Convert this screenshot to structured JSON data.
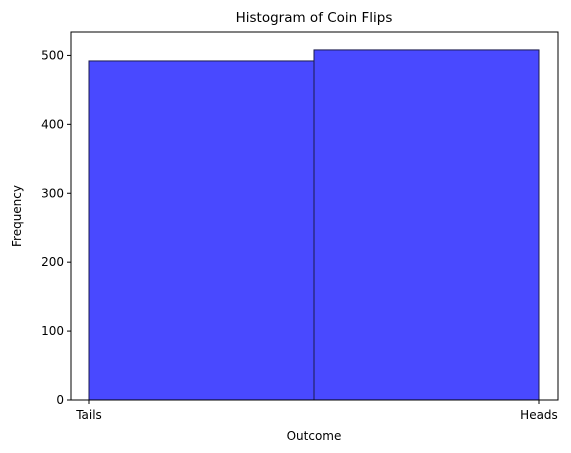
{
  "chart_data": {
    "type": "bar",
    "title": "Histogram of Coin Flips",
    "xlabel": "Outcome",
    "ylabel": "Frequency",
    "categories": [
      "Tails",
      "Heads"
    ],
    "values": [
      492,
      508
    ],
    "bar_color": "#4949ff",
    "edge_color": "#1a1a4d",
    "x_ticks": [
      "Tails",
      "Heads"
    ],
    "y_ticks": [
      0,
      100,
      200,
      300,
      400,
      500
    ],
    "ylim": [
      0,
      534
    ],
    "grid": false,
    "legend": "none"
  }
}
